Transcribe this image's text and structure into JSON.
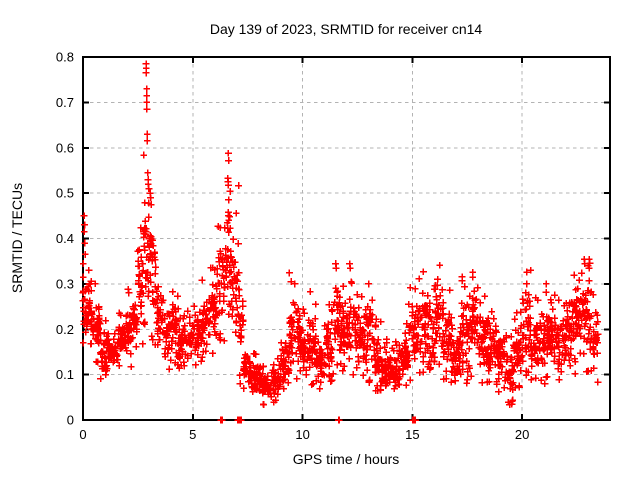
{
  "title": "Day 139 of 2023, SRMTID for receiver cn14",
  "axes": {
    "xlabel": "GPS time / hours",
    "ylabel": "SRMTID / TECUs",
    "xlim": [
      0,
      24
    ],
    "ylim": [
      0,
      0.8
    ],
    "xticks": [
      0,
      5,
      10,
      15,
      20
    ],
    "yticks": [
      0,
      0.1,
      0.2,
      0.3,
      0.4,
      0.5,
      0.6,
      0.7,
      0.8
    ],
    "xtick_labels": [
      "0",
      "5",
      "10",
      "15",
      "20"
    ],
    "ytick_labels": [
      "0",
      "0.1",
      "0.2",
      "0.3",
      "0.4",
      "0.5",
      "0.6",
      "0.7",
      "0.8"
    ]
  },
  "colors": {
    "points": "#ff0000",
    "grid": "#b3b3b3",
    "axis": "#000000",
    "background": "#ffffff"
  },
  "chart_data": {
    "type": "scatter",
    "marker": "plus",
    "series_name": "SRMTID",
    "title": "Day 139 of 2023, SRMTID for receiver cn14",
    "xlabel": "GPS time / hours",
    "ylabel": "SRMTID / TECUs",
    "xlim": [
      0,
      24
    ],
    "ylim": [
      0,
      0.8
    ],
    "grid": "dashed",
    "x_data_range": [
      0,
      23.5
    ],
    "density_bins_format": [
      "x_start_hour",
      "x_end_hour",
      "n_points",
      "y_low_TECU",
      "y_high_TECU"
    ],
    "density_bins": [
      [
        0.0,
        0.1,
        12,
        0.19,
        0.33
      ],
      [
        0.1,
        0.4,
        35,
        0.17,
        0.31
      ],
      [
        0.4,
        0.8,
        40,
        0.14,
        0.27
      ],
      [
        0.8,
        1.2,
        40,
        0.1,
        0.2
      ],
      [
        1.2,
        1.6,
        35,
        0.12,
        0.18
      ],
      [
        1.6,
        1.9,
        30,
        0.13,
        0.22
      ],
      [
        1.9,
        2.2,
        30,
        0.13,
        0.26
      ],
      [
        2.2,
        2.5,
        25,
        0.15,
        0.28
      ],
      [
        2.5,
        2.75,
        28,
        0.2,
        0.42
      ],
      [
        2.75,
        3.05,
        32,
        0.24,
        0.52
      ],
      [
        3.05,
        3.35,
        30,
        0.2,
        0.44
      ],
      [
        3.35,
        3.6,
        25,
        0.15,
        0.3
      ],
      [
        3.6,
        4.0,
        35,
        0.13,
        0.25
      ],
      [
        4.0,
        4.35,
        30,
        0.14,
        0.28
      ],
      [
        4.35,
        4.8,
        40,
        0.12,
        0.22
      ],
      [
        4.8,
        5.3,
        45,
        0.13,
        0.24
      ],
      [
        5.3,
        5.75,
        40,
        0.14,
        0.28
      ],
      [
        5.75,
        6.1,
        35,
        0.16,
        0.33
      ],
      [
        6.1,
        6.45,
        35,
        0.2,
        0.4
      ],
      [
        6.45,
        6.75,
        30,
        0.26,
        0.46
      ],
      [
        6.75,
        7.1,
        35,
        0.18,
        0.45
      ],
      [
        7.1,
        7.3,
        20,
        0.1,
        0.3
      ],
      [
        7.3,
        7.6,
        30,
        0.07,
        0.16
      ],
      [
        7.6,
        8.1,
        45,
        0.05,
        0.13
      ],
      [
        8.1,
        8.6,
        45,
        0.04,
        0.11
      ],
      [
        8.6,
        9.0,
        40,
        0.05,
        0.13
      ],
      [
        9.0,
        9.4,
        40,
        0.07,
        0.18
      ],
      [
        9.4,
        9.8,
        40,
        0.1,
        0.28
      ],
      [
        9.8,
        10.2,
        40,
        0.09,
        0.22
      ],
      [
        10.2,
        10.6,
        40,
        0.1,
        0.25
      ],
      [
        10.6,
        11.0,
        40,
        0.08,
        0.18
      ],
      [
        11.0,
        11.35,
        35,
        0.1,
        0.24
      ],
      [
        11.35,
        11.75,
        35,
        0.13,
        0.32
      ],
      [
        11.75,
        12.1,
        35,
        0.12,
        0.28
      ],
      [
        12.1,
        12.5,
        38,
        0.12,
        0.3
      ],
      [
        12.5,
        12.9,
        38,
        0.1,
        0.26
      ],
      [
        12.9,
        13.2,
        30,
        0.1,
        0.28
      ],
      [
        13.2,
        13.6,
        38,
        0.08,
        0.2
      ],
      [
        13.6,
        14.0,
        38,
        0.06,
        0.16
      ],
      [
        14.0,
        14.4,
        38,
        0.05,
        0.15
      ],
      [
        14.4,
        14.8,
        38,
        0.08,
        0.2
      ],
      [
        14.8,
        15.2,
        35,
        0.1,
        0.26
      ],
      [
        15.2,
        15.6,
        38,
        0.13,
        0.3
      ],
      [
        15.6,
        16.0,
        38,
        0.12,
        0.28
      ],
      [
        16.0,
        16.4,
        38,
        0.13,
        0.31
      ],
      [
        16.4,
        16.8,
        38,
        0.1,
        0.25
      ],
      [
        16.8,
        17.2,
        38,
        0.08,
        0.2
      ],
      [
        17.2,
        17.6,
        38,
        0.1,
        0.28
      ],
      [
        17.6,
        18.0,
        38,
        0.12,
        0.31
      ],
      [
        18.0,
        18.4,
        38,
        0.1,
        0.24
      ],
      [
        18.4,
        18.8,
        38,
        0.1,
        0.22
      ],
      [
        18.8,
        19.2,
        38,
        0.08,
        0.2
      ],
      [
        19.2,
        19.6,
        36,
        0.05,
        0.16
      ],
      [
        19.6,
        20.0,
        38,
        0.08,
        0.22
      ],
      [
        20.0,
        20.4,
        38,
        0.12,
        0.3
      ],
      [
        20.4,
        20.8,
        38,
        0.1,
        0.24
      ],
      [
        20.8,
        21.2,
        38,
        0.1,
        0.26
      ],
      [
        21.2,
        21.6,
        38,
        0.12,
        0.25
      ],
      [
        21.6,
        22.0,
        38,
        0.1,
        0.24
      ],
      [
        22.0,
        22.4,
        38,
        0.12,
        0.28
      ],
      [
        22.4,
        22.8,
        40,
        0.12,
        0.32
      ],
      [
        22.8,
        23.2,
        40,
        0.12,
        0.33
      ],
      [
        23.2,
        23.5,
        25,
        0.1,
        0.25
      ]
    ],
    "peak_points": [
      [
        0.05,
        0.45
      ],
      [
        0.07,
        0.43
      ],
      [
        0.06,
        0.415
      ],
      [
        0.08,
        0.39
      ],
      [
        0.1,
        0.365
      ],
      [
        2.87,
        0.785
      ],
      [
        2.88,
        0.775
      ],
      [
        2.87,
        0.765
      ],
      [
        2.9,
        0.73
      ],
      [
        2.9,
        0.715
      ],
      [
        2.9,
        0.7
      ],
      [
        2.91,
        0.685
      ],
      [
        2.93,
        0.63
      ],
      [
        2.93,
        0.615
      ],
      [
        2.95,
        0.545
      ],
      [
        2.96,
        0.53
      ],
      [
        2.97,
        0.52
      ],
      [
        3.0,
        0.51
      ],
      [
        3.05,
        0.5
      ],
      [
        3.08,
        0.49
      ],
      [
        3.1,
        0.475
      ],
      [
        6.62,
        0.588
      ],
      [
        6.63,
        0.572
      ],
      [
        6.6,
        0.533
      ],
      [
        6.61,
        0.525
      ],
      [
        6.62,
        0.518
      ],
      [
        6.63,
        0.485
      ],
      [
        6.62,
        0.458
      ],
      [
        6.63,
        0.45
      ],
      [
        6.64,
        0.44
      ],
      [
        9.65,
        0.3
      ],
      [
        11.5,
        0.345
      ],
      [
        11.52,
        0.335
      ],
      [
        13.0,
        0.3
      ],
      [
        16.15,
        0.31
      ],
      [
        17.75,
        0.315
      ],
      [
        20.2,
        0.3
      ],
      [
        21.1,
        0.3
      ],
      [
        22.85,
        0.345
      ],
      [
        23.0,
        0.34
      ],
      [
        23.05,
        0.335
      ]
    ],
    "zero_dropouts": [
      6.28,
      6.33,
      7.05,
      7.065,
      7.08,
      7.095,
      7.11,
      7.125,
      7.14,
      7.155,
      7.17,
      7.185,
      7.2,
      11.64,
      11.66,
      15.02,
      15.032,
      15.044,
      15.056,
      15.068,
      15.08,
      15.092,
      15.104,
      15.116,
      15.128,
      15.14
    ]
  }
}
